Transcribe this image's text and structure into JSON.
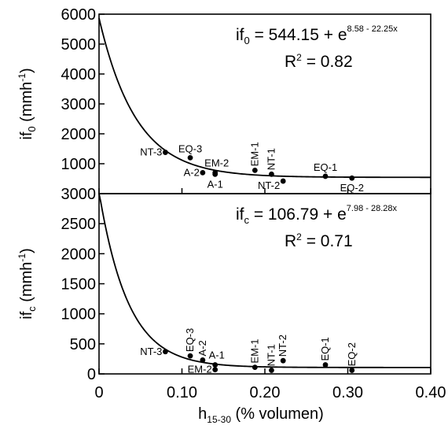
{
  "x_axis": {
    "label_main": "h",
    "label_sub": "15-30",
    "label_rest": " (% volumen)",
    "range": [
      0,
      0.4
    ],
    "ticks": [
      "0",
      "0.10",
      "0.20",
      "0.30",
      "0.40"
    ]
  },
  "chart_data": [
    {
      "type": "scatter",
      "ylabel_main": "if",
      "ylabel_sub": "0",
      "ylabel_unit": " (mmh",
      "ylabel_unit_sup": "-1",
      "ylabel_unit_close": ")",
      "ylim": [
        0,
        6000
      ],
      "yticks": [
        "1000",
        "2000",
        "3000",
        "4000",
        "5000",
        "6000"
      ],
      "equation": {
        "prefix": "if",
        "sub": "0",
        "body": " = 544.15 + e",
        "exponent": "8.58 - 22.25x"
      },
      "r2": {
        "prefix": "R",
        "sup": "2",
        "body": " = 0.82"
      },
      "fit": {
        "a": 544.15,
        "b": 8.58,
        "c": 22.25
      },
      "points": [
        {
          "label": "NT-3",
          "x": 0.08,
          "y": 1380,
          "label_dir": "left"
        },
        {
          "label": "EQ-3",
          "x": 0.11,
          "y": 1200,
          "label_dir": "up"
        },
        {
          "label": "A-2",
          "x": 0.125,
          "y": 700,
          "label_dir": "left"
        },
        {
          "label": "EM-2",
          "x": 0.14,
          "y": 700,
          "label_dir": "upright"
        },
        {
          "label": "A-1",
          "x": 0.14,
          "y": 650,
          "label_dir": "down"
        },
        {
          "label": "EM-1",
          "x": 0.188,
          "y": 780,
          "label_dir": "vertical"
        },
        {
          "label": "NT-1",
          "x": 0.208,
          "y": 650,
          "label_dir": "vertical"
        },
        {
          "label": "NT-2",
          "x": 0.222,
          "y": 420,
          "label_dir": "downleft"
        },
        {
          "label": "EQ-1",
          "x": 0.273,
          "y": 580,
          "label_dir": "up"
        },
        {
          "label": "EQ-2",
          "x": 0.305,
          "y": 520,
          "label_dir": "down"
        }
      ]
    },
    {
      "type": "scatter",
      "ylabel_main": "if",
      "ylabel_sub": "c",
      "ylabel_unit": " (mmh",
      "ylabel_unit_sup": "-1",
      "ylabel_unit_close": ")",
      "ylim": [
        0,
        3000
      ],
      "yticks": [
        "0",
        "500",
        "1000",
        "1500",
        "2000",
        "2500",
        "3000"
      ],
      "equation": {
        "prefix": "if",
        "sub": "c",
        "body": " = 106.79 + e",
        "exponent": "7.98 - 28.28x"
      },
      "r2": {
        "prefix": "R",
        "sup": "2",
        "body": " = 0.71"
      },
      "fit": {
        "a": 106.79,
        "b": 7.98,
        "c": 28.28
      },
      "points": [
        {
          "label": "NT-3",
          "x": 0.08,
          "y": 370,
          "label_dir": "left"
        },
        {
          "label": "EQ-3",
          "x": 0.11,
          "y": 300,
          "label_dir": "vertical"
        },
        {
          "label": "A-2",
          "x": 0.125,
          "y": 230,
          "label_dir": "vertical"
        },
        {
          "label": "A-1",
          "x": 0.14,
          "y": 150,
          "label_dir": "upright"
        },
        {
          "label": "EM-2",
          "x": 0.14,
          "y": 70,
          "label_dir": "left"
        },
        {
          "label": "EM-1",
          "x": 0.188,
          "y": 110,
          "label_dir": "vertical"
        },
        {
          "label": "NT-1",
          "x": 0.208,
          "y": 60,
          "label_dir": "vertical"
        },
        {
          "label": "NT-2",
          "x": 0.222,
          "y": 220,
          "label_dir": "vertical"
        },
        {
          "label": "EQ-1",
          "x": 0.273,
          "y": 150,
          "label_dir": "vertical"
        },
        {
          "label": "EQ-2",
          "x": 0.305,
          "y": 60,
          "label_dir": "vertical"
        }
      ]
    }
  ]
}
